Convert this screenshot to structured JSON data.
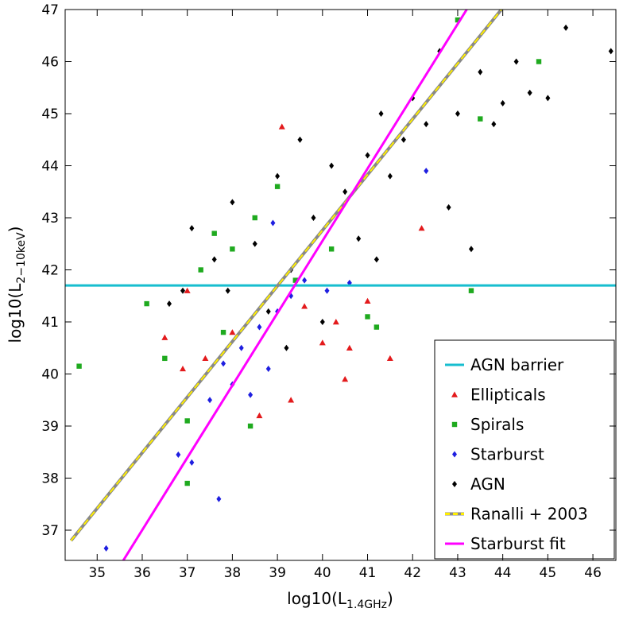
{
  "chart_data": {
    "type": "scatter",
    "xlabel": {
      "text": "log10(L",
      "sub": "1.4GHz",
      "end": ")"
    },
    "ylabel": {
      "text": "log10(L",
      "sub": "2−10keV",
      "end": ")"
    },
    "xlim": [
      34.29,
      46.51
    ],
    "ylim": [
      36.42,
      47
    ],
    "xticks": [
      35,
      36,
      37,
      38,
      39,
      40,
      41,
      42,
      43,
      44,
      45,
      46
    ],
    "yticks": [
      37,
      38,
      39,
      40,
      41,
      42,
      43,
      44,
      45,
      46,
      47
    ],
    "legend": "lower right",
    "series": [
      {
        "name": "AGN barrier",
        "kind": "line",
        "color": "#17becf",
        "x": [
          34.29,
          46.51
        ],
        "values": [
          41.7,
          41.7
        ]
      },
      {
        "name": "Ellipticals",
        "kind": "points",
        "marker": "triangle",
        "color": "#e31a1c",
        "x": [
          36.5,
          36.9,
          37,
          37.4,
          38,
          39.3,
          39.6,
          40,
          40.5,
          40.6,
          41,
          41.5,
          42.2,
          39.1,
          40.3,
          38.6
        ],
        "values": [
          40.7,
          40.1,
          41.6,
          40.3,
          40.8,
          39.5,
          41.3,
          40.6,
          39.9,
          40.5,
          41.4,
          40.3,
          42.8,
          44.75,
          41,
          39.2
        ]
      },
      {
        "name": "Spirals",
        "kind": "points",
        "marker": "square",
        "color": "#1faa1f",
        "x": [
          34.6,
          36.1,
          36.5,
          37,
          37,
          37.3,
          37.6,
          38,
          38.5,
          39,
          39.4,
          40.2,
          41,
          41.2,
          43,
          43.3,
          43.5,
          44.8,
          38.4,
          37.8
        ],
        "values": [
          40.15,
          41.35,
          40.3,
          39.1,
          37.9,
          42,
          42.7,
          42.4,
          43,
          43.6,
          41.8,
          42.4,
          41.1,
          40.9,
          46.8,
          41.6,
          44.9,
          46,
          39,
          40.8
        ]
      },
      {
        "name": "Starburst",
        "kind": "points",
        "marker": "diamond",
        "color": "#1f1fe0",
        "x": [
          35.2,
          36.8,
          37.1,
          37.5,
          37.7,
          37.8,
          38,
          38.2,
          38.4,
          38.6,
          38.8,
          39,
          39.3,
          39.6,
          40.1,
          40.6,
          38.9,
          42.3
        ],
        "values": [
          36.65,
          38.45,
          38.3,
          39.5,
          37.6,
          40.2,
          39.8,
          40.5,
          39.6,
          40.9,
          40.1,
          41.2,
          41.5,
          41.8,
          41.6,
          41.75,
          42.9,
          43.9
        ]
      },
      {
        "name": "AGN",
        "kind": "points",
        "marker": "diamond",
        "color": "#000000",
        "x": [
          36.6,
          37.1,
          37.6,
          38,
          38.5,
          39,
          39.5,
          39.8,
          40.2,
          40.5,
          40.8,
          41,
          41.3,
          41.5,
          41.8,
          42,
          42.3,
          42.6,
          43,
          43.3,
          43.5,
          43.8,
          44,
          44.3,
          44.6,
          45,
          45.4,
          46.4,
          39.2,
          38.8,
          40,
          41.2,
          37.9,
          36.9,
          42.8,
          39.3
        ],
        "values": [
          41.35,
          42.8,
          42.2,
          43.3,
          42.5,
          43.8,
          44.5,
          43,
          44,
          43.5,
          42.6,
          44.2,
          45,
          43.8,
          44.5,
          45.3,
          44.8,
          46.2,
          45,
          42.4,
          45.8,
          44.8,
          45.2,
          46,
          45.4,
          45.3,
          46.65,
          46.2,
          40.5,
          41.2,
          41,
          42.2,
          41.6,
          41.6,
          43.2,
          42
        ]
      },
      {
        "name": "Ranalli + 2003",
        "kind": "line",
        "dash": true,
        "color": "#ffee00",
        "x": [
          34.42,
          43.97
        ],
        "values": [
          36.8,
          47
        ]
      },
      {
        "name": "Starburst fit",
        "kind": "line",
        "color": "#ff00ff",
        "x": [
          35.58,
          43.2
        ],
        "values": [
          36.42,
          47
        ]
      }
    ]
  }
}
